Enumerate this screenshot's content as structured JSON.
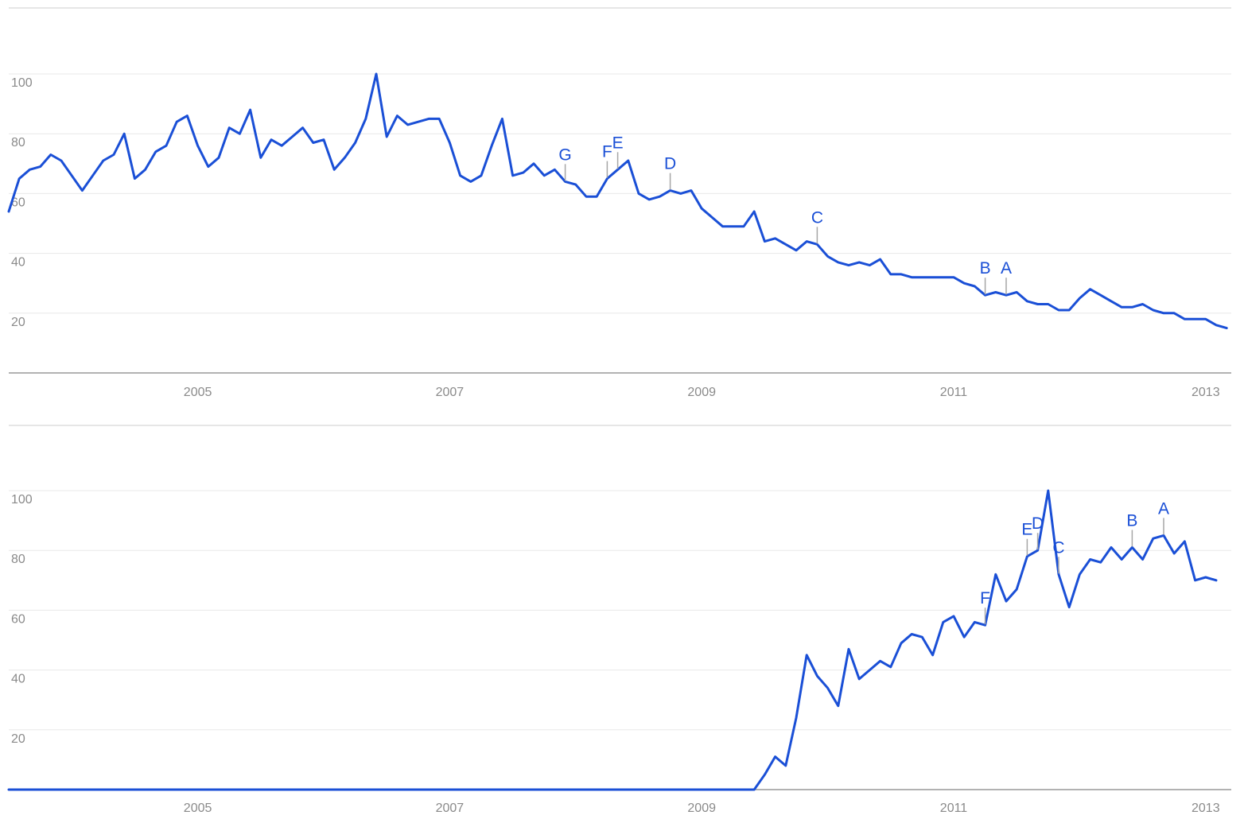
{
  "chart_data": [
    {
      "type": "line",
      "title": "",
      "xlabel": "",
      "ylabel": "",
      "x_start": "2004-01",
      "x_step": "month",
      "x_ticks": [
        "2005",
        "2007",
        "2009",
        "2011",
        "2013"
      ],
      "y_ticks": [
        "20",
        "40",
        "60",
        "80",
        "100"
      ],
      "ylim": [
        0,
        100
      ],
      "grid": true,
      "series": [
        {
          "color": "#1a4fd6",
          "values": [
            54,
            65,
            68,
            69,
            73,
            71,
            66,
            61,
            66,
            71,
            73,
            80,
            65,
            68,
            74,
            76,
            84,
            86,
            76,
            69,
            72,
            82,
            80,
            88,
            72,
            78,
            76,
            79,
            82,
            77,
            78,
            68,
            72,
            77,
            85,
            100,
            79,
            86,
            83,
            84,
            85,
            85,
            77,
            66,
            64,
            66,
            76,
            85,
            66,
            67,
            70,
            66,
            68,
            64,
            63,
            59,
            59,
            65,
            68,
            71,
            60,
            58,
            59,
            61,
            60,
            61,
            55,
            52,
            49,
            49,
            49,
            54,
            44,
            45,
            43,
            41,
            44,
            43,
            39,
            37,
            36,
            37,
            36,
            38,
            33,
            33,
            32,
            32,
            32,
            32,
            32,
            30,
            29,
            26,
            27,
            26,
            27,
            24,
            23,
            23,
            21,
            21,
            25,
            28,
            26,
            24,
            22,
            22,
            23,
            21,
            20,
            20,
            18,
            18,
            18,
            16,
            15
          ]
        }
      ],
      "annotations": [
        {
          "label": "G",
          "date": "2008-06"
        },
        {
          "label": "F",
          "date": "2008-10"
        },
        {
          "label": "E",
          "date": "2008-11"
        },
        {
          "label": "D",
          "date": "2009-04"
        },
        {
          "label": "C",
          "date": "2010-06"
        },
        {
          "label": "B",
          "date": "2011-10"
        },
        {
          "label": "A",
          "date": "2011-12"
        }
      ]
    },
    {
      "type": "line",
      "title": "",
      "xlabel": "",
      "ylabel": "",
      "x_start": "2004-01",
      "x_step": "month",
      "x_ticks": [
        "2005",
        "2007",
        "2009",
        "2011",
        "2013"
      ],
      "y_ticks": [
        "20",
        "40",
        "60",
        "80",
        "100"
      ],
      "ylim": [
        0,
        100
      ],
      "grid": true,
      "series": [
        {
          "color": "#1a4fd6",
          "values": [
            0,
            0,
            0,
            0,
            0,
            0,
            0,
            0,
            0,
            0,
            0,
            0,
            0,
            0,
            0,
            0,
            0,
            0,
            0,
            0,
            0,
            0,
            0,
            0,
            0,
            0,
            0,
            0,
            0,
            0,
            0,
            0,
            0,
            0,
            0,
            0,
            0,
            0,
            0,
            0,
            0,
            0,
            0,
            0,
            0,
            0,
            0,
            0,
            0,
            0,
            0,
            0,
            0,
            0,
            0,
            0,
            0,
            0,
            0,
            0,
            0,
            0,
            0,
            0,
            0,
            0,
            0,
            0,
            0,
            0,
            0,
            0,
            5,
            11,
            8,
            24,
            45,
            38,
            34,
            28,
            47,
            37,
            40,
            43,
            41,
            49,
            52,
            51,
            45,
            56,
            58,
            51,
            56,
            55,
            72,
            63,
            67,
            78,
            80,
            100,
            72,
            61,
            72,
            77,
            76,
            81,
            77,
            81,
            77,
            84,
            85,
            79,
            83,
            70,
            71,
            70
          ]
        }
      ],
      "annotations": [
        {
          "label": "F",
          "date": "2011-10"
        },
        {
          "label": "E",
          "date": "2012-02"
        },
        {
          "label": "D",
          "date": "2012-03"
        },
        {
          "label": "C",
          "date": "2012-05"
        },
        {
          "label": "B",
          "date": "2012-12"
        },
        {
          "label": "A",
          "date": "2013-03"
        }
      ]
    }
  ]
}
